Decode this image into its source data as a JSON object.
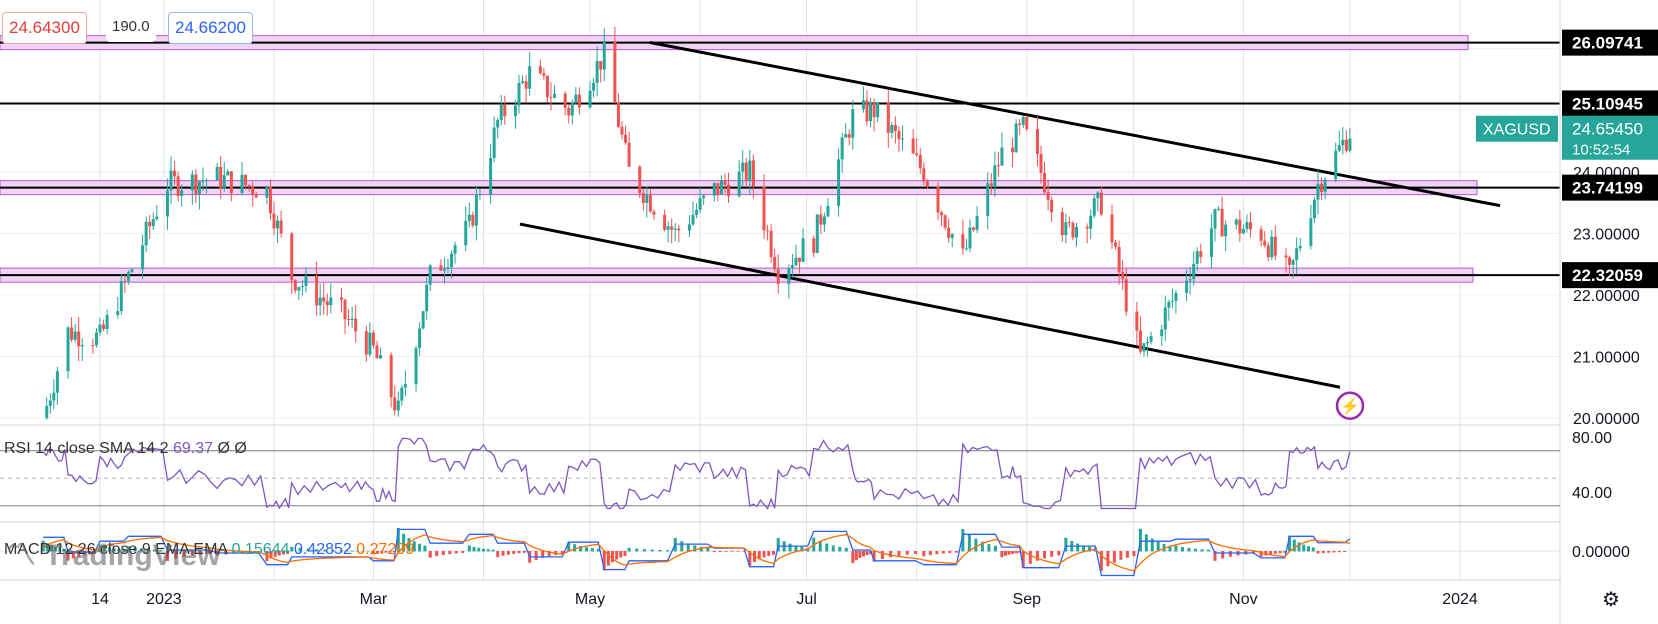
{
  "quote": {
    "bid": "24.64300",
    "spread": "190.0",
    "ask": "24.66200"
  },
  "symbol": "XAGUSD",
  "last_price": "24.65450",
  "countdown": "10:52:54",
  "watermark": "TradingView",
  "colors": {
    "up": "#26a69a",
    "down": "#ef5350",
    "zone_fill": "#f1d3f5",
    "zone_border": "#b45ad0",
    "rsi": "#7e57c2",
    "macd": "#2962ff",
    "signal": "#ff6d00",
    "badge": "#26a69a"
  },
  "rsi_label": {
    "title": "RSI 14 close SMA 14 2",
    "value": "69.37",
    "ma1": "Ø",
    "ma2": "Ø"
  },
  "macd_label": {
    "title": "MACD 12 26 close 9 EMA EMA",
    "hist": "0.15644",
    "macd": "0.42852",
    "signal": "0.27209"
  },
  "chart_data": {
    "type": "candlestick",
    "instrument": "XAGUSD",
    "price_axis_ticks": [
      "23.00000",
      "22.00000",
      "21.00000",
      "20.00000",
      "24.00000"
    ],
    "time_axis_ticks": [
      "14",
      "2023",
      "Mar",
      "May",
      "Jul",
      "Sep",
      "Nov",
      "2024"
    ],
    "price_range": [
      20.0,
      26.4
    ],
    "horizontal_levels": [
      "26.09741",
      "25.10945",
      "23.74199",
      "22.32059"
    ],
    "price_series_approx": [
      {
        "t": "Nov 28",
        "p": 20.0
      },
      {
        "t": "Dec 5",
        "p": 21.4
      },
      {
        "t": "Dec 14",
        "p": 21.3
      },
      {
        "t": "Dec 22",
        "p": 22.3
      },
      {
        "t": "Jan 2",
        "p": 23.8
      },
      {
        "t": "Jan 16",
        "p": 23.9
      },
      {
        "t": "Jan 30",
        "p": 23.7
      },
      {
        "t": "Feb 6",
        "p": 22.3
      },
      {
        "t": "Feb 20",
        "p": 21.7
      },
      {
        "t": "Mar 1",
        "p": 21.1
      },
      {
        "t": "Mar 8",
        "p": 20.1
      },
      {
        "t": "Mar 17",
        "p": 22.3
      },
      {
        "t": "Mar 28",
        "p": 23.1
      },
      {
        "t": "Apr 5",
        "p": 24.8
      },
      {
        "t": "Apr 14",
        "p": 25.6
      },
      {
        "t": "Apr 25",
        "p": 25.0
      },
      {
        "t": "May 5",
        "p": 25.9
      },
      {
        "t": "May 12",
        "p": 24.0
      },
      {
        "t": "May 25",
        "p": 23.0
      },
      {
        "t": "Jun 5",
        "p": 23.7
      },
      {
        "t": "Jun 15",
        "p": 24.0
      },
      {
        "t": "Jun 23",
        "p": 22.4
      },
      {
        "t": "Jul 3",
        "p": 22.9
      },
      {
        "t": "Jul 14",
        "p": 24.9
      },
      {
        "t": "Jul 20",
        "p": 25.0
      },
      {
        "t": "Aug 3",
        "p": 24.0
      },
      {
        "t": "Aug 14",
        "p": 22.6
      },
      {
        "t": "Aug 25",
        "p": 24.3
      },
      {
        "t": "Aug 31",
        "p": 24.7
      },
      {
        "t": "Sep 12",
        "p": 23.0
      },
      {
        "t": "Sep 22",
        "p": 23.5
      },
      {
        "t": "Oct 3",
        "p": 21.0
      },
      {
        "t": "Oct 13",
        "p": 22.0
      },
      {
        "t": "Oct 24",
        "p": 23.2
      },
      {
        "t": "Nov 6",
        "p": 23.0
      },
      {
        "t": "Nov 14",
        "p": 22.3
      },
      {
        "t": "Nov 22",
        "p": 23.8
      },
      {
        "t": "Dec 1",
        "p": 24.65
      }
    ],
    "rsi_axis_ticks": [
      "80.00",
      "40.00"
    ],
    "rsi_levels": [
      70,
      50,
      30
    ],
    "macd_axis_ticks": [
      "0.00000"
    ],
    "grid": true
  }
}
